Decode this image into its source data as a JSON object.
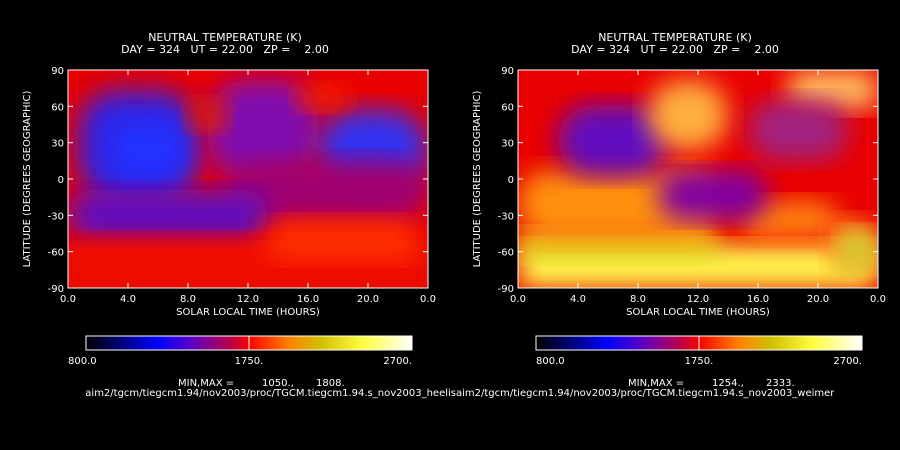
{
  "chart_data": [
    {
      "type": "heatmap",
      "title": "NEUTRAL TEMPERATURE (K)",
      "subtitle": "DAY = 324   UT = 22.00   ZP =    2.00",
      "xlabel": "SOLAR LOCAL TIME (HOURS)",
      "ylabel": "LATITUDE (DEGREES GEOGRAPHIC)",
      "xlim": [
        0,
        24
      ],
      "ylim": [
        -90,
        90
      ],
      "x_ticks": [
        "0.0",
        "4.0",
        "8.0",
        "12.0",
        "16.0",
        "20.0",
        "0.0"
      ],
      "y_ticks": [
        "90",
        "60",
        "30",
        "0",
        "-30",
        "-60",
        "-90"
      ],
      "colorbar": {
        "min": 800.0,
        "max": 2700.0,
        "labels": [
          "800.0",
          "1750.",
          "2700."
        ]
      },
      "min_max_label": "MIN,MAX =",
      "min_value": "1050.,",
      "max_value": "1808.",
      "source_path": "aim2/tgcm/tiegcm1.94/nov2003/proc/TGCM.tiegcm1.94.s_nov2003_heelis",
      "colors": {
        "low": "#1010ff",
        "mid": "#e80000",
        "high": "#ffff40"
      }
    },
    {
      "type": "heatmap",
      "title": "NEUTRAL TEMPERATURE (K)",
      "subtitle": "DAY = 324   UT = 22.00   ZP =    2.00",
      "xlabel": "SOLAR LOCAL TIME (HOURS)",
      "ylabel": "LATITUDE (DEGREES GEOGRAPHIC)",
      "xlim": [
        0,
        24
      ],
      "ylim": [
        -90,
        90
      ],
      "x_ticks": [
        "0.0",
        "4.0",
        "8.0",
        "12.0",
        "16.0",
        "20.0",
        "0.0"
      ],
      "y_ticks": [
        "90",
        "60",
        "30",
        "0",
        "-30",
        "-60",
        "-90"
      ],
      "colorbar": {
        "min": 800.0,
        "max": 2700.0,
        "labels": [
          "800.0",
          "1750.",
          "2700."
        ]
      },
      "min_max_label": "MIN,MAX =",
      "min_value": "1254.,",
      "max_value": "2333.",
      "source_path": "aim2/tgcm/tiegcm1.94/nov2003/proc/TGCM.tiegcm1.94.s_nov2003_weimer",
      "colors": {
        "low": "#1010ff",
        "mid": "#e80000",
        "high": "#ffff40"
      }
    }
  ]
}
